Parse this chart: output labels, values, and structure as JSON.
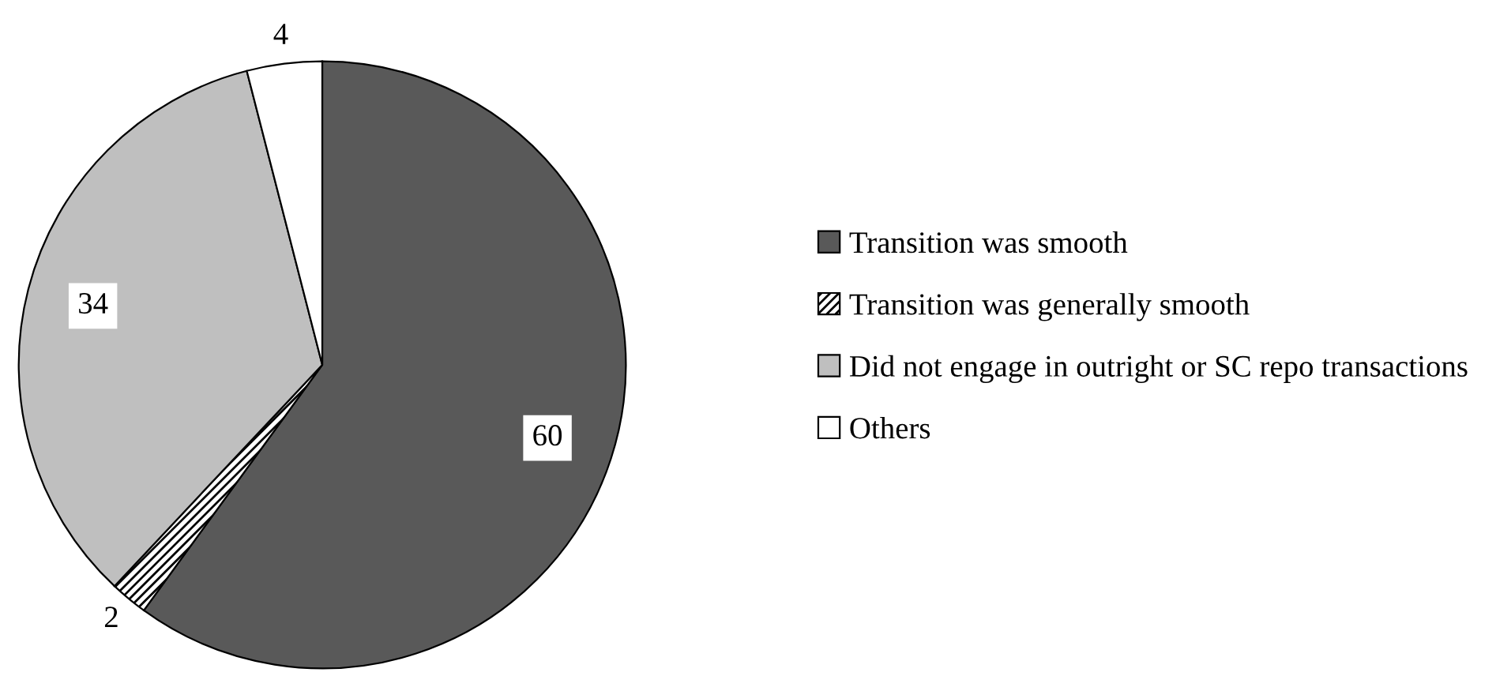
{
  "chart_data": {
    "type": "pie",
    "categories": [
      "Transition was smooth",
      "Transition was generally smooth",
      "Did not engage in outright or SC repo transactions",
      "Others"
    ],
    "values": [
      60,
      2,
      34,
      4
    ],
    "colors": [
      "#595959",
      "#000000",
      "#bfbfbf",
      "#ffffff"
    ],
    "data_labels": true,
    "legend": "right"
  }
}
